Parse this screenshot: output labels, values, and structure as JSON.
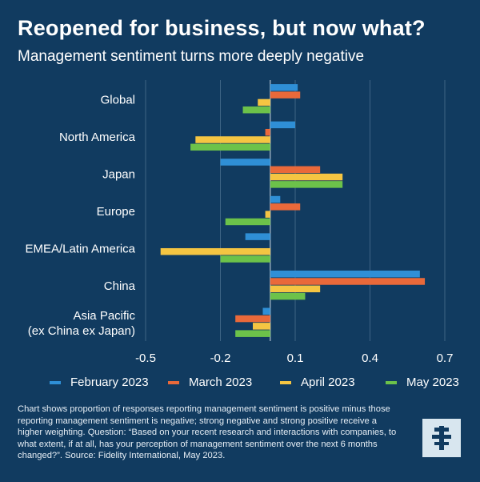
{
  "header": {
    "title": "Reopened for business, but now what?",
    "subtitle": "Management sentiment turns more deeply negative"
  },
  "colors": {
    "background": "#113b60",
    "february": "#2f8fd6",
    "march": "#e9693a",
    "april": "#f5c542",
    "may": "#6cc24a"
  },
  "chart_data": {
    "type": "bar",
    "orientation": "horizontal",
    "categories": [
      "Global",
      "North America",
      "Japan",
      "Europe",
      "EMEA/Latin America",
      "China",
      "Asia Pacific\n(ex China ex Japan)"
    ],
    "series": [
      {
        "name": "February 2023",
        "color": "#2f8fd6",
        "values": [
          0.11,
          0.1,
          -0.2,
          0.04,
          -0.1,
          0.6,
          -0.03
        ]
      },
      {
        "name": "March 2023",
        "color": "#e9693a",
        "values": [
          0.12,
          -0.02,
          0.2,
          0.12,
          0.0,
          0.62,
          -0.14
        ]
      },
      {
        "name": "April 2023",
        "color": "#f5c542",
        "values": [
          -0.05,
          -0.3,
          0.29,
          -0.02,
          -0.44,
          0.2,
          -0.07
        ]
      },
      {
        "name": "May 2023",
        "color": "#6cc24a",
        "values": [
          -0.11,
          -0.32,
          0.29,
          -0.18,
          -0.2,
          0.14,
          -0.14
        ]
      }
    ],
    "xlim": [
      -0.5,
      0.7
    ],
    "xticks": [
      -0.5,
      -0.2,
      0.1,
      0.4,
      0.7
    ],
    "xtick_labels": [
      "-0.5",
      "-0.2",
      "0.1",
      "0.4",
      "0.7"
    ],
    "grid": "vertical",
    "legend_position": "bottom"
  },
  "footnote": "Chart shows proportion of responses reporting management sentiment is positive minus those reporting management sentiment is negative; strong negative and strong positive receive a higher weighting. Question: “Based on your recent research and interactions with companies, to what extent, if at all, has your perception of management sentiment over the next 6 months changed?”. Source: Fidelity International, May 2023.",
  "logo": {
    "icon": "fidelity-logo-icon"
  }
}
